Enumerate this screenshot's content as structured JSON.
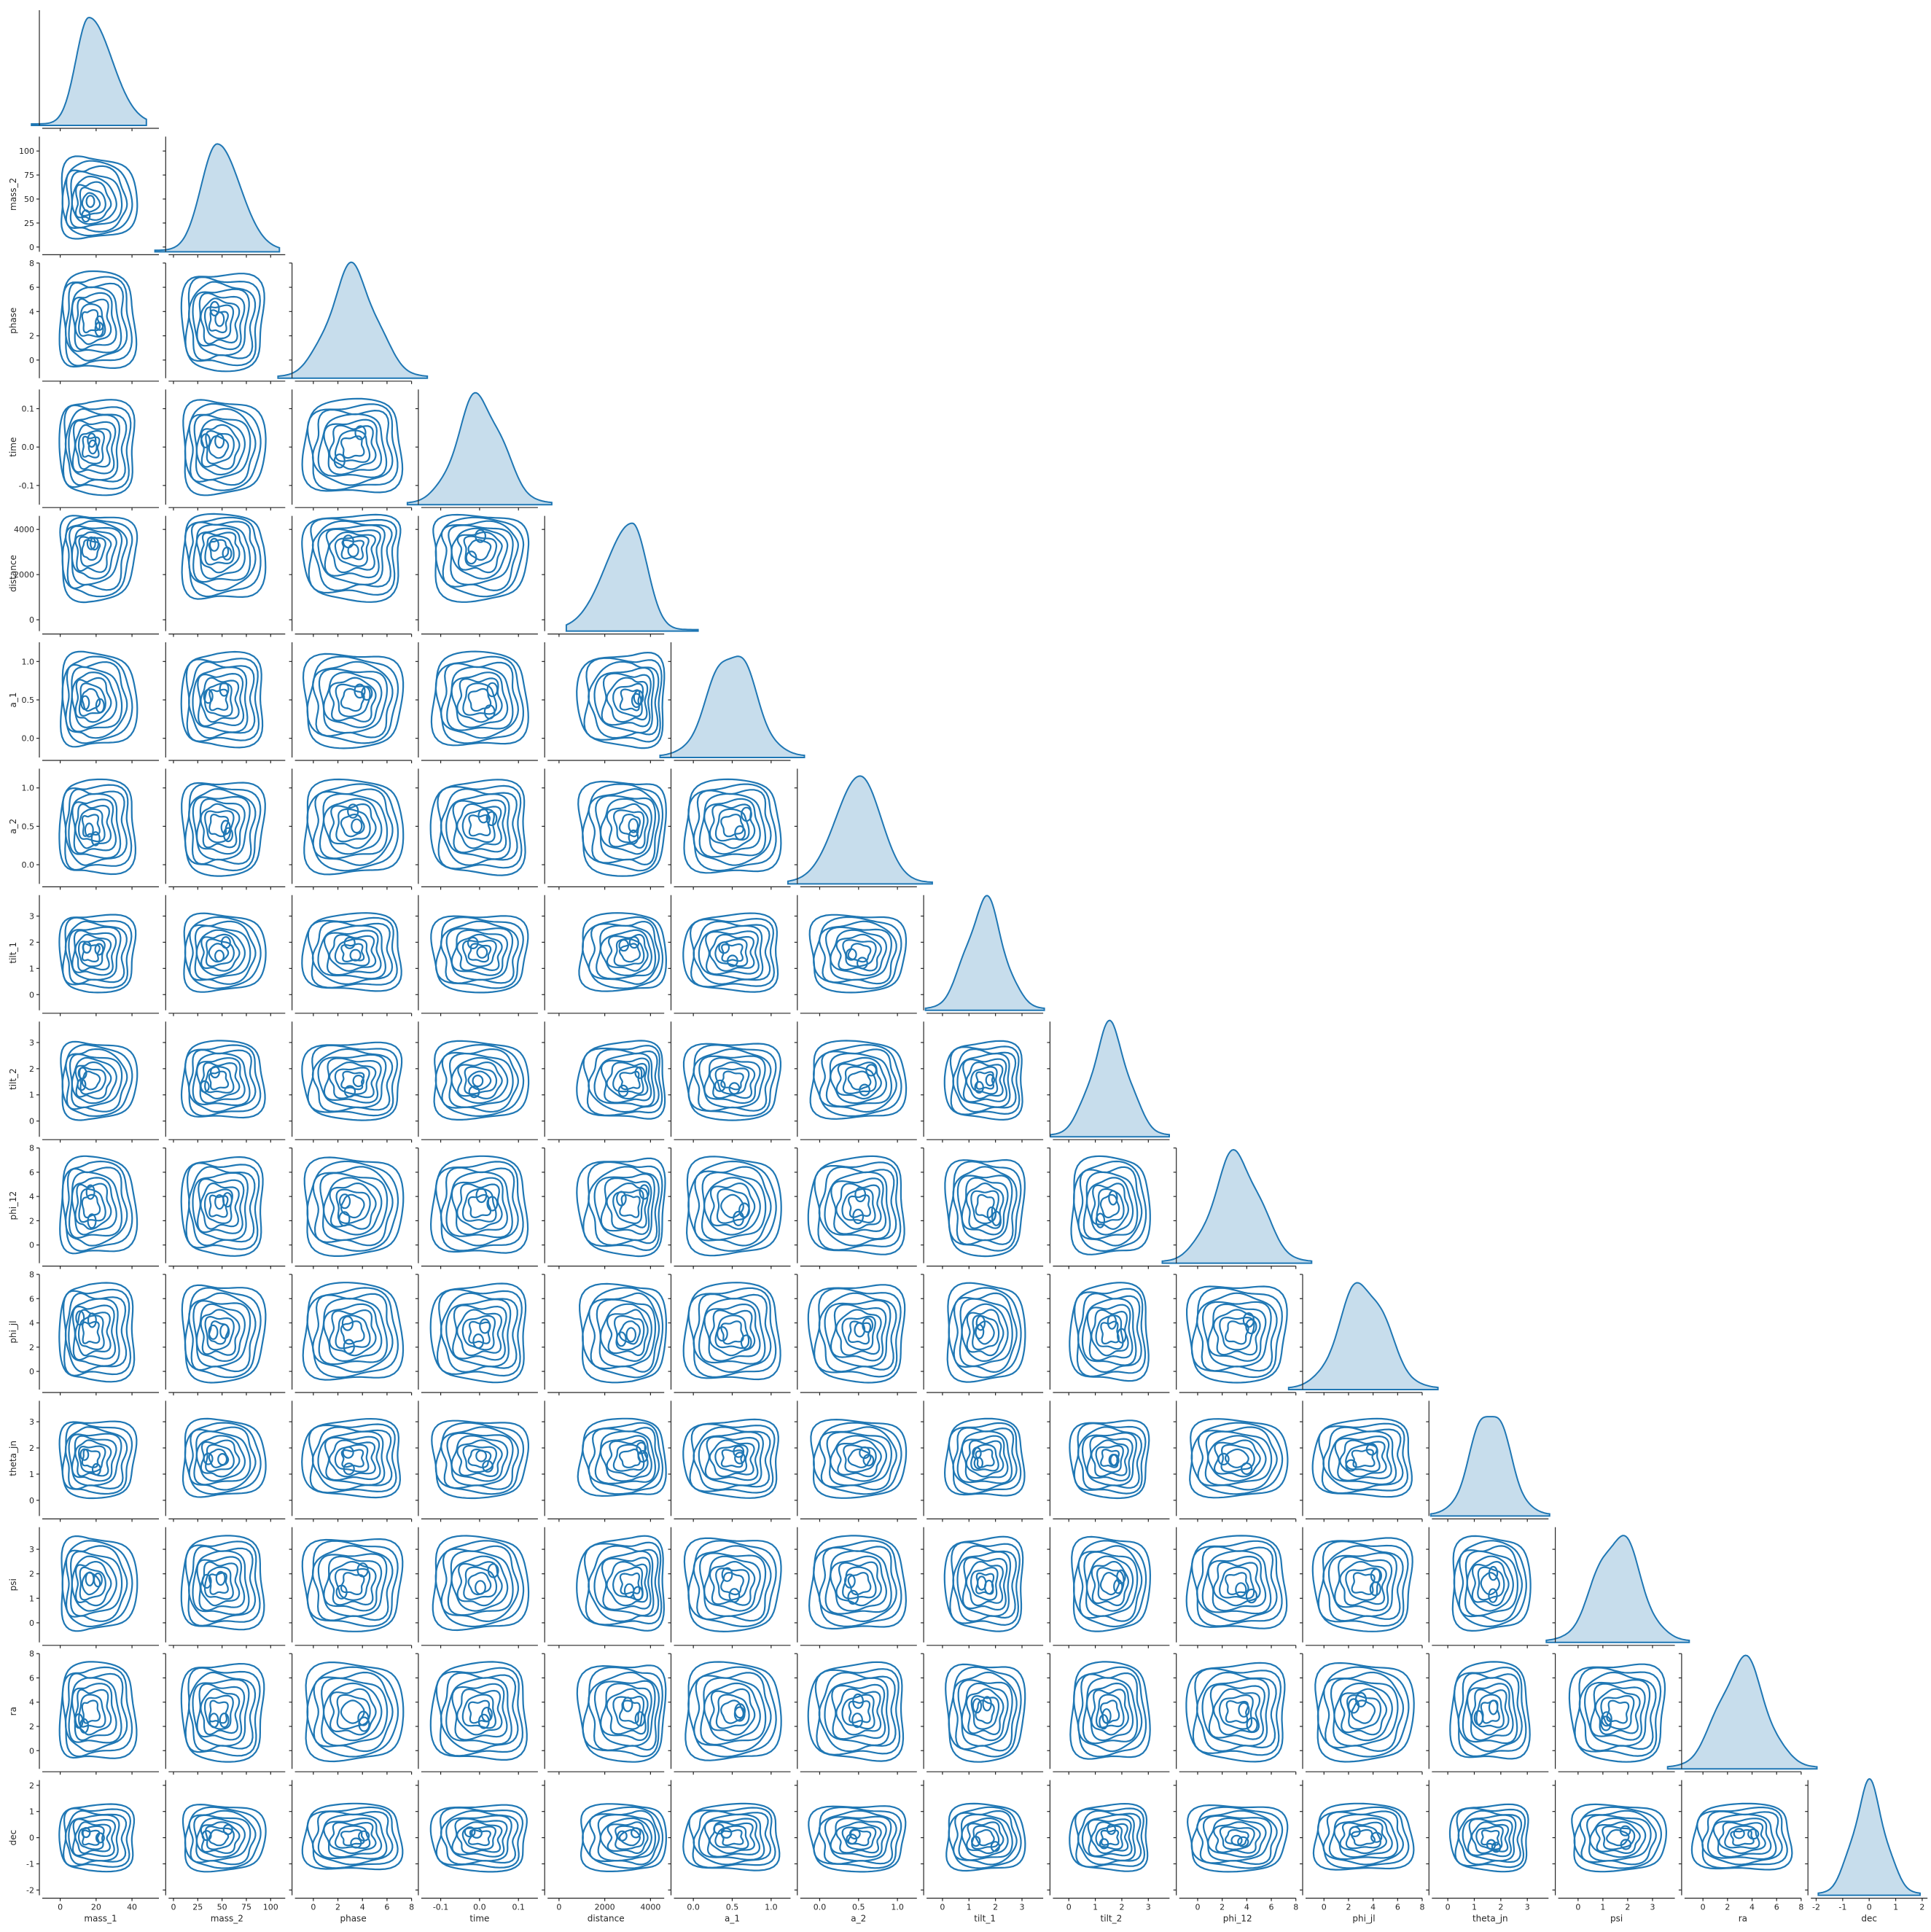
{
  "chart_data": {
    "type": "pairplot",
    "layout": "corner",
    "diagonal": "kde",
    "off_diagonal": "kde-contour",
    "color": "#1f77b4",
    "contour_levels": 8,
    "variables": [
      {
        "name": "mass_1",
        "ticks": [
          0,
          20,
          40
        ],
        "lim": [
          -10,
          55
        ],
        "mean": 16,
        "sd": 10,
        "skew": 0.8
      },
      {
        "name": "mass_2",
        "ticks": [
          0,
          25,
          50,
          75,
          100
        ],
        "lim": [
          -5,
          115
        ],
        "mean": 45,
        "sd": 20,
        "skew": 0.5
      },
      {
        "name": "phase",
        "ticks": [
          0,
          2,
          4,
          6,
          8
        ],
        "lim": [
          -1.5,
          8
        ],
        "mean": 3.2,
        "sd": 1.9,
        "skew": 0
      },
      {
        "name": "time",
        "ticks": [
          -0.1,
          0.0,
          0.1
        ],
        "lim": [
          -0.15,
          0.15
        ],
        "mean": 0.0,
        "sd": 0.058,
        "skew": 0
      },
      {
        "name": "distance",
        "ticks": [
          0,
          2000,
          4000
        ],
        "lim": [
          -500,
          4600
        ],
        "mean": 3200,
        "sd": 900,
        "skew": -0.8
      },
      {
        "name": "a_1",
        "ticks": [
          0.0,
          0.5,
          1.0
        ],
        "lim": [
          -0.25,
          1.25
        ],
        "mean": 0.5,
        "sd": 0.29,
        "skew": 0
      },
      {
        "name": "a_2",
        "ticks": [
          0.0,
          0.5,
          1.0
        ],
        "lim": [
          -0.25,
          1.25
        ],
        "mean": 0.52,
        "sd": 0.29,
        "skew": -0.2
      },
      {
        "name": "tilt_1",
        "ticks": [
          0,
          1,
          2,
          3
        ],
        "lim": [
          -0.6,
          3.8
        ],
        "mean": 1.6,
        "sd": 0.7,
        "skew": 0
      },
      {
        "name": "tilt_2",
        "ticks": [
          0,
          1,
          2,
          3
        ],
        "lim": [
          -0.6,
          3.8
        ],
        "mean": 1.55,
        "sd": 0.7,
        "skew": 0
      },
      {
        "name": "phi_12",
        "ticks": [
          0,
          2,
          4,
          6,
          8
        ],
        "lim": [
          -1.5,
          8
        ],
        "mean": 3.2,
        "sd": 1.9,
        "skew": 0
      },
      {
        "name": "phi_jl",
        "ticks": [
          0,
          2,
          4,
          6,
          8
        ],
        "lim": [
          -1.5,
          8
        ],
        "mean": 3.2,
        "sd": 1.9,
        "skew": 0
      },
      {
        "name": "theta_jn",
        "ticks": [
          0,
          1,
          2,
          3
        ],
        "lim": [
          -0.6,
          3.8
        ],
        "mean": 1.6,
        "sd": 0.7,
        "skew": 0
      },
      {
        "name": "psi",
        "ticks": [
          0,
          1,
          2,
          3
        ],
        "lim": [
          -0.8,
          3.9
        ],
        "mean": 1.6,
        "sd": 0.9,
        "skew": 0
      },
      {
        "name": "ra",
        "ticks": [
          0,
          2,
          4,
          6,
          8
        ],
        "lim": [
          -1.5,
          8
        ],
        "mean": 3.2,
        "sd": 1.9,
        "skew": 0
      },
      {
        "name": "dec",
        "ticks": [
          -2,
          -1,
          0,
          1,
          2
        ],
        "lim": [
          -2.2,
          2.2
        ],
        "mean": 0.0,
        "sd": 0.6,
        "skew": 0
      }
    ]
  }
}
